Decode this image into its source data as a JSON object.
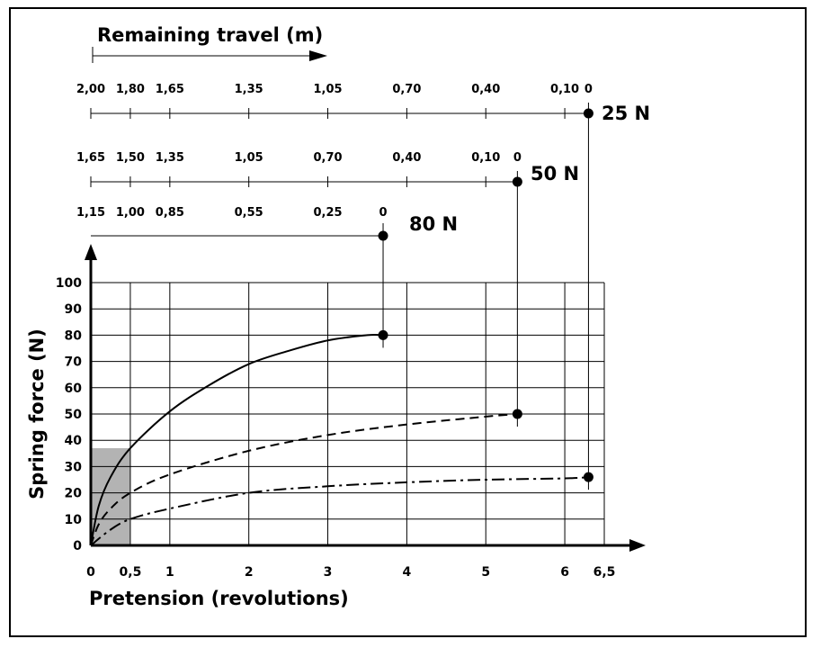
{
  "chart_data": {
    "type": "line",
    "title": "",
    "xlabel": "Pretension (revolutions)",
    "ylabel": "Spring force (N)",
    "xlim": [
      0,
      6.5
    ],
    "ylim": [
      0,
      100
    ],
    "x_ticks": [
      "0",
      "0,5",
      "1",
      "2",
      "3",
      "4",
      "5",
      "6",
      "6,5"
    ],
    "x_tick_values": [
      0,
      0.5,
      1,
      2,
      3,
      4,
      5,
      6,
      6.5
    ],
    "y_ticks": [
      "0",
      "10",
      "20",
      "30",
      "40",
      "50",
      "60",
      "70",
      "80",
      "90",
      "100"
    ],
    "grid": true,
    "shaded_region": {
      "x": [
        0,
        0.5
      ],
      "y": [
        0,
        37
      ]
    },
    "series": [
      {
        "name": "80 N",
        "style": "solid",
        "x": [
          0,
          0.1,
          0.25,
          0.5,
          1,
          1.5,
          2,
          2.5,
          3,
          3.5,
          3.7
        ],
        "y": [
          0,
          15,
          26,
          37,
          51,
          61,
          69,
          74,
          78,
          80,
          80
        ]
      },
      {
        "name": "50 N",
        "style": "dashed",
        "x": [
          0,
          0.1,
          0.25,
          0.5,
          1,
          2,
          3,
          4,
          5,
          5.4
        ],
        "y": [
          0,
          8,
          14,
          20,
          27,
          36,
          42,
          46,
          49,
          50
        ]
      },
      {
        "name": "25 N",
        "style": "dash-dot",
        "x": [
          0,
          0.25,
          0.5,
          1,
          2,
          3,
          4,
          5,
          6,
          6.3
        ],
        "y": [
          0,
          6,
          10,
          14,
          20,
          22.5,
          24,
          25,
          25.5,
          26
        ]
      }
    ],
    "endpoints": [
      {
        "x": 3.7,
        "y": 80
      },
      {
        "x": 5.4,
        "y": 50
      },
      {
        "x": 6.3,
        "y": 26
      }
    ],
    "remaining_travel": {
      "title": "Remaining travel (m)",
      "scales": [
        {
          "force": "25 N",
          "labels": [
            "2,00",
            "1,80",
            "1,65",
            "1,35",
            "1,05",
            "0,70",
            "0,40",
            "0,10",
            "0"
          ],
          "at": [
            0,
            0.5,
            1,
            2,
            3,
            4,
            5,
            6,
            6.3
          ],
          "end_x": 6.3
        },
        {
          "force": "50 N",
          "labels": [
            "1,65",
            "1,50",
            "1,35",
            "1,05",
            "0,70",
            "0,40",
            "0,10",
            "0"
          ],
          "at": [
            0,
            0.5,
            1,
            2,
            3,
            4,
            5,
            5.4
          ],
          "end_x": 5.4
        },
        {
          "force": "80 N",
          "labels": [
            "1,15",
            "1,00",
            "0,85",
            "0,55",
            "0,25",
            "0"
          ],
          "at": [
            0,
            0.5,
            1,
            2,
            3,
            3.7
          ],
          "end_x": 3.7
        }
      ]
    },
    "colors": {
      "ink": "#000000",
      "shade": "#b3b3b3"
    }
  }
}
